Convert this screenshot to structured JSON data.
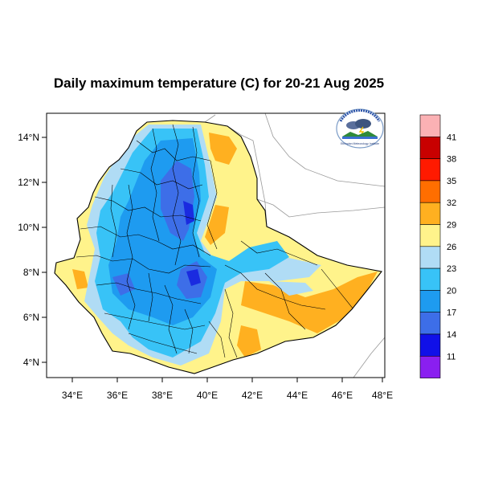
{
  "title": "Daily maximum temperature (C) for 20-21 Aug 2025",
  "axes": {
    "x_ticks": [
      "34°E",
      "36°E",
      "38°E",
      "40°E",
      "42°E",
      "44°E",
      "46°E",
      "48°E"
    ],
    "y_ticks": [
      "14°N",
      "12°N",
      "10°N",
      "8°N",
      "6°N",
      "4°N"
    ]
  },
  "colorbar": {
    "labels": [
      "41",
      "38",
      "35",
      "32",
      "29",
      "26",
      "23",
      "20",
      "17",
      "14",
      "11"
    ],
    "colors": [
      "#fbb1b4",
      "#c80000",
      "#ff1a00",
      "#ff6e00",
      "#ffb020",
      "#fff38b",
      "#b0dcf5",
      "#38c3f7",
      "#1e9bf0",
      "#3d6ee8",
      "#1010e8",
      "#8a1ff0"
    ]
  },
  "logo": {
    "text": "Ethiopian Meteorology Institute",
    "icon": "emi-logo-icon"
  },
  "palette": {
    "cool_core": "#2d54e0",
    "warm_lowland": "#ffb020"
  }
}
